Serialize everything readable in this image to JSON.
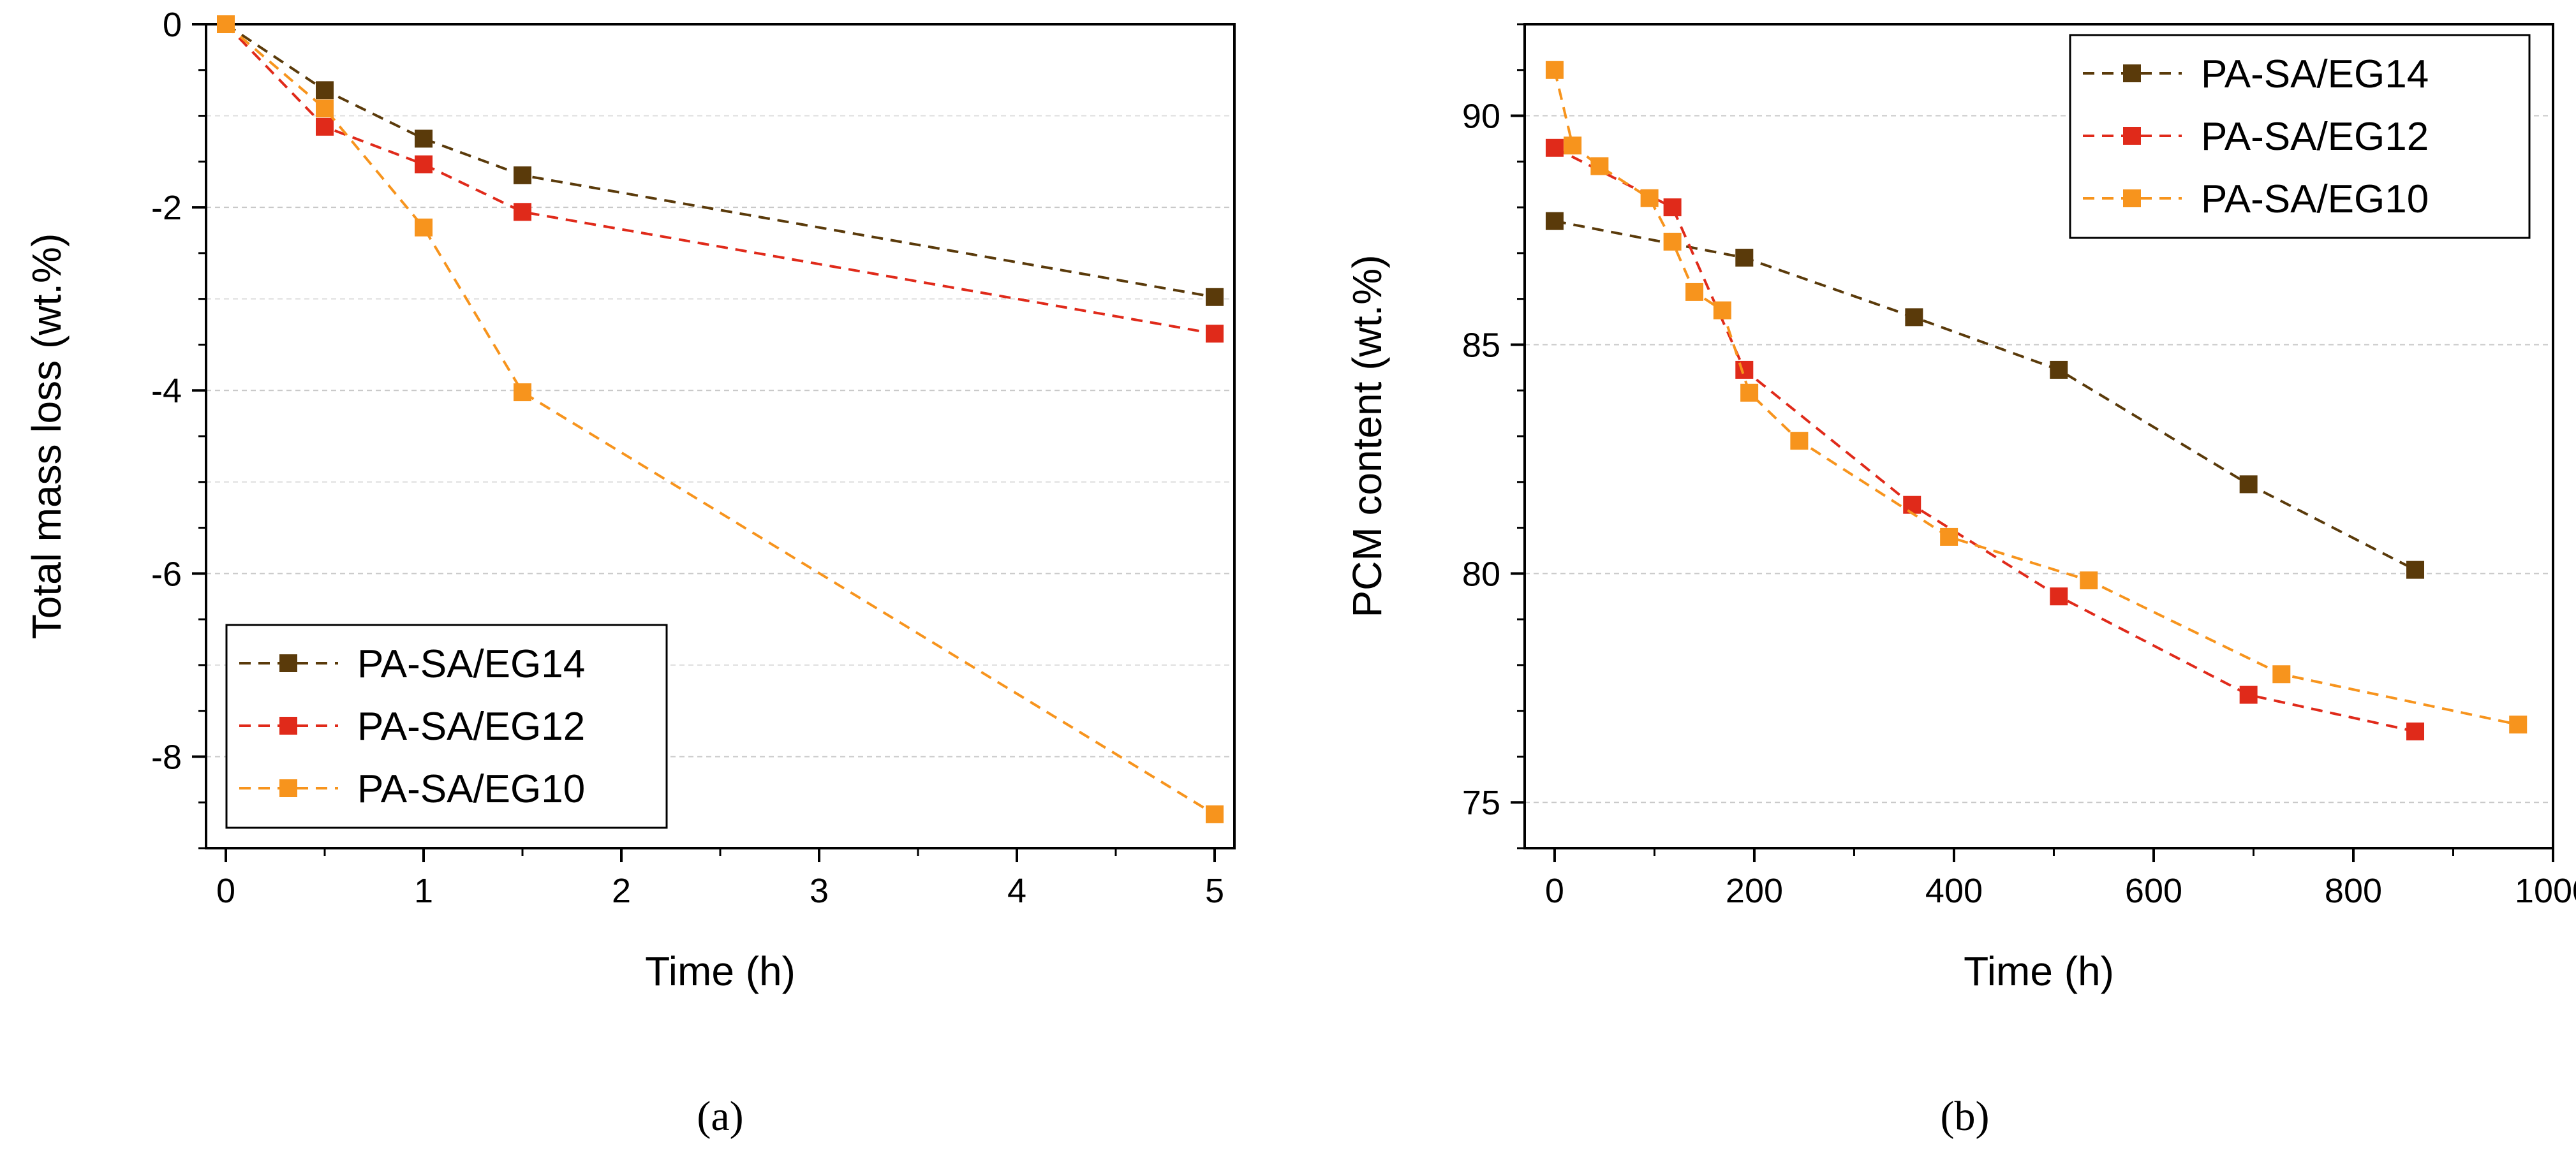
{
  "chart_data": [
    {
      "type": "line",
      "panel_label": "(a)",
      "xlabel": "Time (h)",
      "ylabel": "Total mass loss (wt.%)",
      "xlim": [
        -0.1,
        5.1
      ],
      "ylim": [
        -9,
        0
      ],
      "xticks": [
        0,
        1,
        2,
        3,
        4,
        5
      ],
      "xtick_labels": [
        "0",
        "1",
        "2",
        "3",
        "4",
        "5"
      ],
      "yticks": [
        0,
        -2,
        -4,
        -6,
        -8
      ],
      "ytick_labels": [
        "0",
        "-2",
        "-4",
        "-6",
        "-8"
      ],
      "grid": "horizontal-dashed",
      "legend_position": "bottom-left",
      "series": [
        {
          "name": "PA-SA/EG14",
          "color": "#5a3a0a",
          "x": [
            0,
            0.5,
            1,
            1.5,
            5
          ],
          "y": [
            0,
            -0.72,
            -1.25,
            -1.65,
            -2.98
          ]
        },
        {
          "name": "PA-SA/EG12",
          "color": "#e02a1a",
          "x": [
            0,
            0.5,
            1,
            1.5,
            5
          ],
          "y": [
            0,
            -1.12,
            -1.53,
            -2.05,
            -3.38
          ]
        },
        {
          "name": "PA-SA/EG10",
          "color": "#f7941d",
          "x": [
            0,
            0.5,
            1,
            1.5,
            5
          ],
          "y": [
            0,
            -0.92,
            -2.22,
            -4.02,
            -8.63
          ]
        }
      ]
    },
    {
      "type": "line",
      "panel_label": "(b)",
      "xlabel": "Time (h)",
      "ylabel": "PCM content (wt.%)",
      "xlim": [
        -30,
        1000
      ],
      "ylim": [
        74,
        92
      ],
      "xticks": [
        0,
        200,
        400,
        600,
        800,
        1000
      ],
      "xtick_labels": [
        "0",
        "200",
        "400",
        "600",
        "800",
        "1000"
      ],
      "yticks": [
        75,
        80,
        85,
        90
      ],
      "ytick_labels": [
        "75",
        "80",
        "85",
        "90"
      ],
      "grid": "horizontal-dashed",
      "legend_position": "top-right",
      "series": [
        {
          "name": "PA-SA/EG14",
          "color": "#5a3a0a",
          "x": [
            0,
            190,
            360,
            505,
            695,
            862
          ],
          "y": [
            87.7,
            86.9,
            85.6,
            84.45,
            81.95,
            80.08
          ]
        },
        {
          "name": "PA-SA/EG12",
          "color": "#e02a1a",
          "x": [
            0,
            118,
            190,
            358,
            505,
            695,
            862
          ],
          "y": [
            89.3,
            88.0,
            84.45,
            81.5,
            79.5,
            77.35,
            76.55
          ]
        },
        {
          "name": "PA-SA/EG10",
          "color": "#f7941d",
          "x": [
            0,
            18,
            45,
            95,
            118,
            140,
            168,
            195,
            245,
            395,
            535,
            728,
            965
          ],
          "y": [
            91.0,
            89.35,
            88.9,
            88.2,
            87.25,
            86.15,
            85.75,
            83.95,
            82.9,
            80.8,
            79.85,
            77.8,
            76.7
          ]
        }
      ]
    }
  ]
}
